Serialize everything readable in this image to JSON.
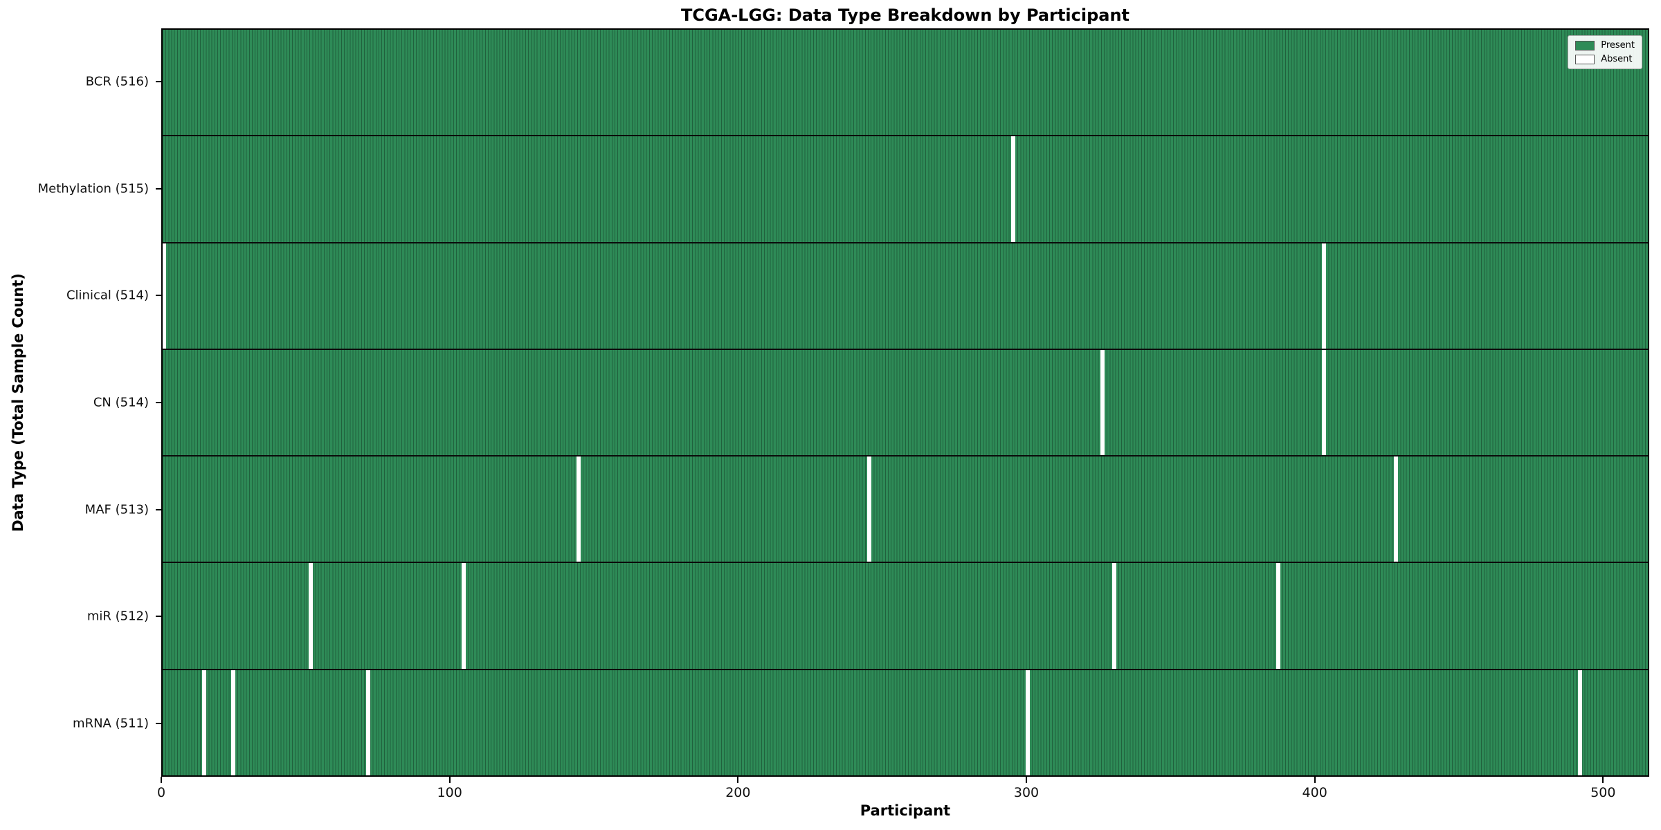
{
  "chart_data": {
    "type": "heatmap",
    "title": "TCGA-LGG: Data Type Breakdown by Participant",
    "xlabel": "Participant",
    "ylabel": "Data Type (Total Sample Count)",
    "n_participants": 516,
    "x_ticks": [
      0,
      100,
      200,
      300,
      400,
      500
    ],
    "rows": [
      {
        "label": "BCR (516)",
        "total": 516,
        "absent_participants": []
      },
      {
        "label": "Methylation (515)",
        "total": 515,
        "absent_participants": [
          295
        ]
      },
      {
        "label": "Clinical (514)",
        "total": 514,
        "absent_participants": [
          0,
          403
        ]
      },
      {
        "label": "CN (514)",
        "total": 514,
        "absent_participants": [
          326,
          403
        ]
      },
      {
        "label": "MAF (513)",
        "total": 513,
        "absent_participants": [
          144,
          245,
          428
        ]
      },
      {
        "label": "miR (512)",
        "total": 512,
        "absent_participants": [
          51,
          104,
          330,
          387
        ]
      },
      {
        "label": "mRNA (511)",
        "total": 511,
        "absent_participants": [
          14,
          24,
          71,
          300,
          492
        ]
      }
    ],
    "legend": [
      {
        "label": "Present",
        "color": "#2e8b57"
      },
      {
        "label": "Absent",
        "color": "#ffffff"
      }
    ],
    "colors": {
      "present": "#2e8b57",
      "absent": "#ffffff",
      "cell_edge": "#20613d",
      "row_separator": "#0b0b0b",
      "spine": "#000000"
    },
    "legend_position": "upper right",
    "grid": false
  }
}
